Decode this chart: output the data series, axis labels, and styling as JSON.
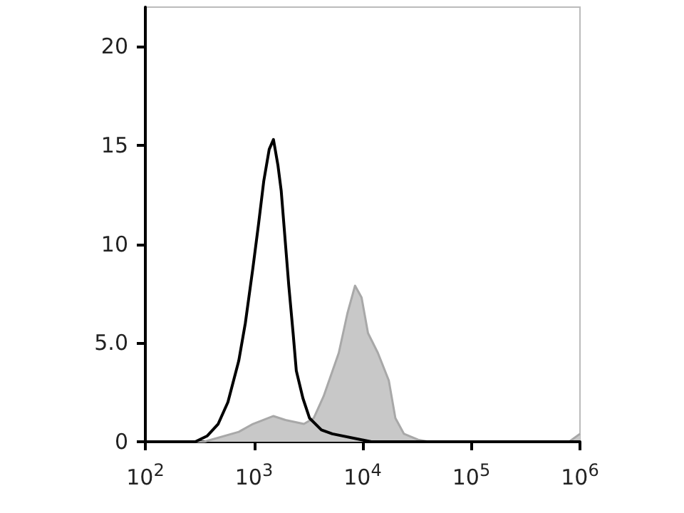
{
  "chart_data": {
    "type": "line",
    "log": "x",
    "grid": false,
    "marker": "none",
    "line_style": "solid",
    "xlim": [
      100,
      1000000
    ],
    "xticks": [
      {
        "value": 100,
        "label": "10$^{2}$"
      },
      {
        "value": 1000,
        "label": "10$^{3}$"
      },
      {
        "value": 10000,
        "label": "10$^{4}$"
      },
      {
        "value": 100000,
        "label": "10$^{5}$"
      },
      {
        "value": 1000000,
        "label": "10$^{6}$"
      }
    ],
    "ylim": [
      0,
      22
    ],
    "yticks": [
      0,
      {
        "value": 5,
        "label": "5.0"
      },
      10,
      15,
      20
    ],
    "series": [
      {
        "type": "area",
        "color": "#c8c8c8",
        "x": [
          100,
          347,
          724,
          977,
          1510,
          1950,
          2880,
          3550,
          4370,
          6030,
          7240,
          8510,
          9770,
          11200,
          13800,
          17400,
          20000,
          24000,
          32400,
          40700,
          794000,
          1000000
        ],
        "values": [
          0,
          0,
          0.5,
          0.9,
          1.3,
          1.1,
          0.9,
          1.2,
          2.3,
          4.5,
          6.5,
          7.9,
          7.3,
          5.5,
          4.5,
          3.1,
          1.2,
          0.4,
          0.1,
          0,
          0,
          0.4
        ]
      },
      {
        "color": "#000000",
        "x": [
          100,
          288,
          372,
          468,
          575,
          724,
          832,
          977,
          1100,
          1230,
          1380,
          1510,
          1660,
          1780,
          2090,
          2290,
          2450,
          2820,
          3240,
          4170,
          5250,
          9770,
          12000,
          1000000
        ],
        "values": [
          0,
          0,
          0.3,
          0.9,
          2.0,
          4.1,
          6.0,
          8.8,
          11.0,
          13.2,
          14.8,
          15.3,
          14.0,
          12.7,
          7.9,
          5.5,
          3.6,
          2.2,
          1.2,
          0.6,
          0.4,
          0.1,
          0,
          0
        ]
      }
    ]
  }
}
